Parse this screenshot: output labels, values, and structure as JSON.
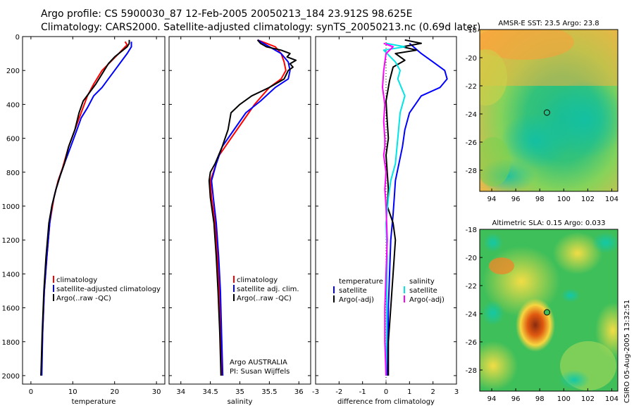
{
  "title": {
    "line1": "Argo profile: CS 5900030_87 12-Feb-2005 20050213_184 23.912S 98.625E",
    "line2": "Climatology: CARS2000. Satellite-adjusted climatology: synTS_20050213.nc (0.69d later)"
  },
  "footer": {
    "credit": "CSIRO 05-Aug-2005 13:32:51",
    "argo_label": "Argo AUSTRALIA",
    "pi_label": "PI: Susan Wijffels"
  },
  "colors": {
    "climatology": "#ff0000",
    "satellite": "#0000ff",
    "argo": "#000000",
    "sal_satellite": "#00e5e5",
    "sal_argo": "#ff00ff"
  },
  "chart_data": [
    {
      "id": "temperature",
      "type": "line",
      "xlabel": "temperature",
      "xlim": [
        -2,
        32
      ],
      "ylim": [
        0,
        2050
      ],
      "xticks": [
        0,
        10,
        20,
        30
      ],
      "yticks": [
        0,
        200,
        400,
        600,
        800,
        1000,
        1200,
        1400,
        1600,
        1800,
        2000
      ],
      "legend": [
        "climatology",
        "satellite-adjusted climatology",
        "Argo(..raw -QC)"
      ],
      "legend_position": "lower-right",
      "series": [
        {
          "name": "climatology",
          "color": "#ff0000",
          "points": [
            [
              22.5,
              30
            ],
            [
              23.0,
              50
            ],
            [
              22.5,
              60
            ],
            [
              21,
              100
            ],
            [
              19,
              150
            ],
            [
              17,
              200
            ],
            [
              15,
              280
            ],
            [
              13.5,
              350
            ],
            [
              12,
              450
            ],
            [
              10.5,
              550
            ],
            [
              9,
              650
            ],
            [
              7.5,
              780
            ],
            [
              6.5,
              850
            ],
            [
              5.5,
              950
            ],
            [
              4.5,
              1100
            ],
            [
              3.8,
              1300
            ],
            [
              3.2,
              1500
            ],
            [
              2.8,
              1750
            ],
            [
              2.5,
              2000
            ]
          ]
        },
        {
          "name": "satellite-adjusted climatology",
          "color": "#0000ff",
          "points": [
            [
              24,
              30
            ],
            [
              24,
              60
            ],
            [
              23,
              100
            ],
            [
              21.5,
              150
            ],
            [
              20,
              200
            ],
            [
              18.5,
              250
            ],
            [
              17,
              300
            ],
            [
              15,
              350
            ],
            [
              13.5,
              420
            ],
            [
              12,
              480
            ],
            [
              11,
              550
            ],
            [
              9.5,
              650
            ],
            [
              8,
              750
            ],
            [
              7,
              820
            ],
            [
              6,
              900
            ],
            [
              5,
              1000
            ],
            [
              4.5,
              1100
            ],
            [
              3.8,
              1300
            ],
            [
              3.2,
              1500
            ],
            [
              2.8,
              1750
            ],
            [
              2.6,
              2000
            ]
          ]
        },
        {
          "name": "Argo(..raw -QC)",
          "color": "#000000",
          "points": [
            [
              23.5,
              20
            ],
            [
              23.5,
              40
            ],
            [
              23,
              60
            ],
            [
              22,
              80
            ],
            [
              20,
              120
            ],
            [
              18.5,
              160
            ],
            [
              17.5,
              200
            ],
            [
              15.5,
              280
            ],
            [
              14,
              330
            ],
            [
              12.5,
              380
            ],
            [
              11.5,
              450
            ],
            [
              10.5,
              550
            ],
            [
              9,
              650
            ],
            [
              8,
              750
            ],
            [
              7,
              820
            ],
            [
              6,
              900
            ],
            [
              5,
              1000
            ],
            [
              4.3,
              1100
            ],
            [
              3.6,
              1300
            ],
            [
              3.1,
              1500
            ],
            [
              2.7,
              1750
            ],
            [
              2.4,
              2000
            ]
          ]
        }
      ]
    },
    {
      "id": "salinity",
      "type": "line",
      "xlabel": "salinity",
      "xlim": [
        33.8,
        36.2
      ],
      "ylim": [
        0,
        2050
      ],
      "xticks": [
        34,
        34.5,
        35,
        35.5,
        36
      ],
      "legend": [
        "climatology",
        "satellite adj. clim.",
        "Argo(..raw -QC)"
      ],
      "legend_position": "lower-right",
      "series": [
        {
          "name": "climatology",
          "color": "#ff0000",
          "points": [
            [
              35.3,
              20
            ],
            [
              35.45,
              40
            ],
            [
              35.6,
              60
            ],
            [
              35.7,
              100
            ],
            [
              35.75,
              150
            ],
            [
              35.78,
              200
            ],
            [
              35.7,
              250
            ],
            [
              35.5,
              300
            ],
            [
              35.25,
              400
            ],
            [
              35.05,
              500
            ],
            [
              34.85,
              600
            ],
            [
              34.65,
              700
            ],
            [
              34.55,
              800
            ],
            [
              34.5,
              850
            ],
            [
              34.52,
              950
            ],
            [
              34.58,
              1100
            ],
            [
              34.62,
              1300
            ],
            [
              34.65,
              1500
            ],
            [
              34.68,
              1750
            ],
            [
              34.7,
              2000
            ]
          ]
        },
        {
          "name": "satellite adj. clim.",
          "color": "#0000ff",
          "points": [
            [
              35.3,
              20
            ],
            [
              35.4,
              40
            ],
            [
              35.5,
              60
            ],
            [
              35.7,
              100
            ],
            [
              35.82,
              150
            ],
            [
              35.85,
              200
            ],
            [
              35.82,
              250
            ],
            [
              35.6,
              300
            ],
            [
              35.35,
              380
            ],
            [
              35.1,
              450
            ],
            [
              34.9,
              550
            ],
            [
              34.7,
              650
            ],
            [
              34.6,
              750
            ],
            [
              34.52,
              850
            ],
            [
              34.55,
              950
            ],
            [
              34.6,
              1100
            ],
            [
              34.64,
              1300
            ],
            [
              34.67,
              1500
            ],
            [
              34.69,
              1750
            ],
            [
              34.71,
              2000
            ]
          ]
        },
        {
          "name": "Argo(..raw -QC)",
          "color": "#000000",
          "points": [
            [
              35.3,
              20
            ],
            [
              35.35,
              40
            ],
            [
              35.45,
              60
            ],
            [
              35.7,
              80
            ],
            [
              35.85,
              100
            ],
            [
              35.8,
              120
            ],
            [
              35.95,
              140
            ],
            [
              35.85,
              160
            ],
            [
              35.9,
              180
            ],
            [
              35.82,
              200
            ],
            [
              35.75,
              250
            ],
            [
              35.5,
              300
            ],
            [
              35.2,
              350
            ],
            [
              35.0,
              400
            ],
            [
              34.85,
              450
            ],
            [
              34.8,
              550
            ],
            [
              34.7,
              650
            ],
            [
              34.58,
              750
            ],
            [
              34.5,
              800
            ],
            [
              34.48,
              850
            ],
            [
              34.5,
              950
            ],
            [
              34.56,
              1100
            ],
            [
              34.6,
              1300
            ],
            [
              34.63,
              1500
            ],
            [
              34.66,
              1750
            ],
            [
              34.68,
              2000
            ]
          ]
        }
      ]
    },
    {
      "id": "difference",
      "type": "line",
      "xlabel": "difference from climatology",
      "xlim": [
        -3,
        3
      ],
      "ylim": [
        0,
        2050
      ],
      "xticks": [
        -3,
        -2,
        -1,
        0,
        1,
        2,
        3
      ],
      "legend": [
        "temperature",
        "satellite",
        "Argo(-adj)",
        "salinity",
        "satellite",
        "Argo(-adj)"
      ],
      "legend_position": "lower-center",
      "series": [
        {
          "name": "satellite",
          "color": "#0000ff",
          "points": [
            [
              1.0,
              40
            ],
            [
              1.5,
              100
            ],
            [
              2.0,
              150
            ],
            [
              2.5,
              200
            ],
            [
              2.6,
              250
            ],
            [
              2.3,
              300
            ],
            [
              1.5,
              350
            ],
            [
              1.0,
              450
            ],
            [
              0.8,
              550
            ],
            [
              0.7,
              650
            ],
            [
              0.55,
              750
            ],
            [
              0.4,
              850
            ],
            [
              0.35,
              950
            ],
            [
              0.3,
              1050
            ],
            [
              0.2,
              1200
            ],
            [
              0.15,
              1400
            ],
            [
              0.1,
              1600
            ],
            [
              0.08,
              1800
            ],
            [
              0.05,
              2000
            ]
          ]
        },
        {
          "name": "Argo(-adj)",
          "color": "#000000",
          "points": [
            [
              0.8,
              20
            ],
            [
              1.5,
              40
            ],
            [
              0.7,
              60
            ],
            [
              1.3,
              80
            ],
            [
              0.4,
              100
            ],
            [
              0.8,
              140
            ],
            [
              0.3,
              180
            ],
            [
              0.15,
              260
            ],
            [
              0.0,
              380
            ],
            [
              0.05,
              500
            ],
            [
              0.1,
              600
            ],
            [
              0.0,
              700
            ],
            [
              0.05,
              800
            ],
            [
              0.1,
              900
            ],
            [
              0.05,
              1000
            ],
            [
              0.3,
              1100
            ],
            [
              0.4,
              1200
            ],
            [
              0.3,
              1400
            ],
            [
              0.2,
              1600
            ],
            [
              0.1,
              1800
            ],
            [
              0.1,
              2000
            ]
          ]
        },
        {
          "name": "satellite",
          "color": "#00e5e5",
          "points": [
            [
              0.0,
              40
            ],
            [
              0.8,
              60
            ],
            [
              -0.1,
              80
            ],
            [
              0.4,
              150
            ],
            [
              0.6,
              200
            ],
            [
              0.5,
              250
            ],
            [
              0.8,
              350
            ],
            [
              0.6,
              450
            ],
            [
              0.5,
              600
            ],
            [
              0.4,
              750
            ],
            [
              0.2,
              850
            ],
            [
              0.1,
              950
            ],
            [
              0.0,
              1100
            ],
            [
              0.05,
              1300
            ],
            [
              0.03,
              1500
            ],
            [
              0.02,
              1800
            ],
            [
              0.0,
              2000
            ]
          ]
        },
        {
          "name": "Argo(-adj)",
          "color": "#ff00ff",
          "points": [
            [
              -0.1,
              40
            ],
            [
              0.3,
              60
            ],
            [
              0.0,
              100
            ],
            [
              -0.1,
              200
            ],
            [
              -0.15,
              300
            ],
            [
              -0.05,
              400
            ],
            [
              -0.1,
              500
            ],
            [
              -0.05,
              600
            ],
            [
              -0.05,
              650
            ],
            [
              -0.1,
              700
            ],
            [
              0.0,
              800
            ],
            [
              -0.05,
              900
            ],
            [
              0.0,
              1000
            ],
            [
              0.05,
              1200
            ],
            [
              0.0,
              1400
            ],
            [
              -0.05,
              1600
            ],
            [
              -0.05,
              1800
            ],
            [
              0.0,
              2000
            ]
          ]
        }
      ]
    },
    {
      "id": "sst-map",
      "type": "heatmap",
      "title": "AMSR-E SST: 23.5 Argo: 23.8",
      "xlim": [
        93,
        104.5
      ],
      "ylim": [
        -29.5,
        -18
      ],
      "xticks": [
        94,
        96,
        98,
        100,
        102,
        104
      ],
      "yticks": [
        -18,
        -20,
        -22,
        -24,
        -26,
        -28
      ],
      "marker": {
        "lon": 98.6,
        "lat": -23.9
      }
    },
    {
      "id": "sla-map",
      "type": "heatmap",
      "title": "Altimetric SLA: 0.15 Argo: 0.033",
      "xlim": [
        93,
        104.5
      ],
      "ylim": [
        -29.5,
        -18
      ],
      "xticks": [
        94,
        96,
        98,
        100,
        102,
        104
      ],
      "yticks": [
        -18,
        -20,
        -22,
        -24,
        -26,
        -28
      ],
      "marker": {
        "lon": 98.6,
        "lat": -23.9
      }
    }
  ]
}
